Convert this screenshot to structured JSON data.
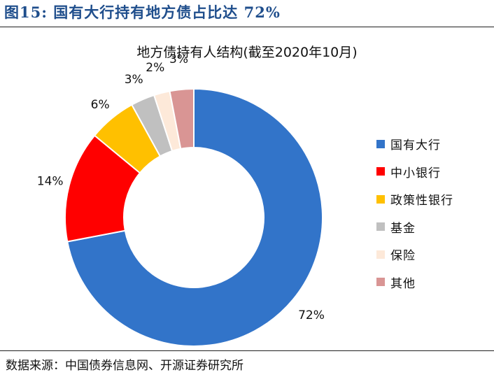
{
  "figure_title": "图15:  国有大行持有地方债占比达 72%",
  "source": "数据来源：中国债券信息网、开源证券研究所",
  "chart_data": {
    "type": "pie",
    "style": "donut",
    "title": "地方债持有人结构(截至2020年10月)",
    "legend_position": "right",
    "slices": [
      {
        "name": "国有大行",
        "value": 72,
        "label": "72%",
        "color": "#3274c9"
      },
      {
        "name": "中小银行",
        "value": 14,
        "label": "14%",
        "color": "#ff0000"
      },
      {
        "name": "政策性银行",
        "value": 6,
        "label": "6%",
        "color": "#ffc000"
      },
      {
        "name": "基金",
        "value": 3,
        "label": "3%",
        "color": "#c0c0c0"
      },
      {
        "name": "保险",
        "value": 2,
        "label": "2%",
        "color": "#fde9d9"
      },
      {
        "name": "其他",
        "value": 3,
        "label": "3%",
        "color": "#d99594"
      }
    ]
  }
}
